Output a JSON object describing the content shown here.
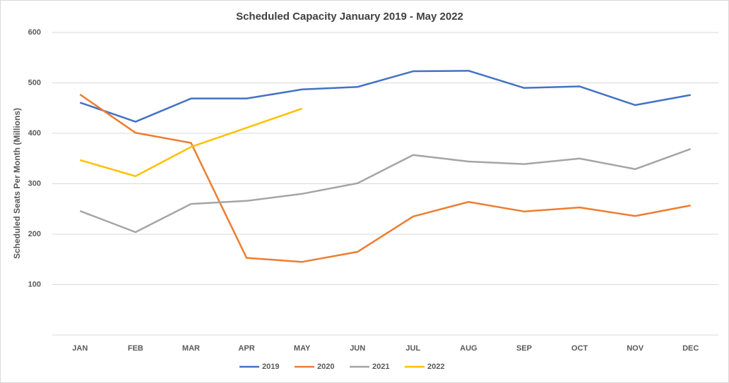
{
  "chart_data": {
    "type": "line",
    "title": "Scheduled Capacity January 2019   - May 2022",
    "y_label": "Scheduled Seats Per Month (Millions)",
    "categories": [
      "JAN",
      "FEB",
      "MAR",
      "APR",
      "MAY",
      "JUN",
      "JUL",
      "AUG",
      "SEP",
      "OCT",
      "NOV",
      "DEC"
    ],
    "series": [
      {
        "name": "2019",
        "color": "#4472c4",
        "values": [
          461,
          423,
          469,
          469,
          487,
          492,
          523,
          524,
          490,
          493,
          456,
          476
        ]
      },
      {
        "name": "2020",
        "color": "#ed7d31",
        "values": [
          477,
          401,
          381,
          153,
          145,
          165,
          235,
          264,
          245,
          253,
          236,
          257
        ]
      },
      {
        "name": "2021",
        "color": "#a5a5a5",
        "values": [
          246,
          204,
          260,
          266,
          280,
          301,
          357,
          344,
          339,
          350,
          329,
          369
        ]
      },
      {
        "name": "2022",
        "color": "#ffc000",
        "values": [
          347,
          315,
          373,
          411,
          449,
          null,
          null,
          null,
          null,
          null,
          null,
          null
        ]
      }
    ],
    "ylim": [
      0,
      600
    ],
    "yticks": [
      100,
      200,
      300,
      400,
      500,
      600
    ],
    "grid": true,
    "legend": "bottom"
  }
}
